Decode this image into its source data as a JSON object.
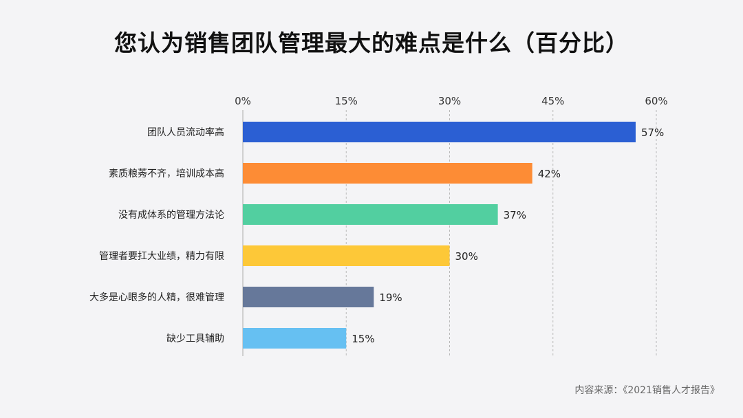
{
  "title": "您认为销售团队管理最大的难点是什么（百分比）",
  "source": "内容来源：《2021销售人才报告》",
  "chart_data": {
    "type": "bar",
    "orientation": "horizontal",
    "title": "您认为销售团队管理最大的难点是什么（百分比）",
    "xlabel": "",
    "ylabel": "",
    "xlim": [
      0,
      60
    ],
    "ticks": [
      0,
      15,
      30,
      45,
      60
    ],
    "tick_labels": [
      "0%",
      "15%",
      "30%",
      "45%",
      "60%"
    ],
    "grid": "vertical dashed",
    "categories": [
      "团队人员流动率高",
      "素质粮莠不齐，培训成本高",
      "没有成体系的管理方法论",
      "管理者要扛大业绩，精力有限",
      "大多是心眼多的人精，很难管理",
      "缺少工具辅助"
    ],
    "values": [
      57,
      42,
      37,
      30,
      19,
      15
    ],
    "value_labels": [
      "57%",
      "42%",
      "37%",
      "30%",
      "19%",
      "15%"
    ],
    "colors": [
      "#2b5fd3",
      "#fd8c35",
      "#52cfa0",
      "#fdc838",
      "#66789a",
      "#66c0f2"
    ]
  }
}
